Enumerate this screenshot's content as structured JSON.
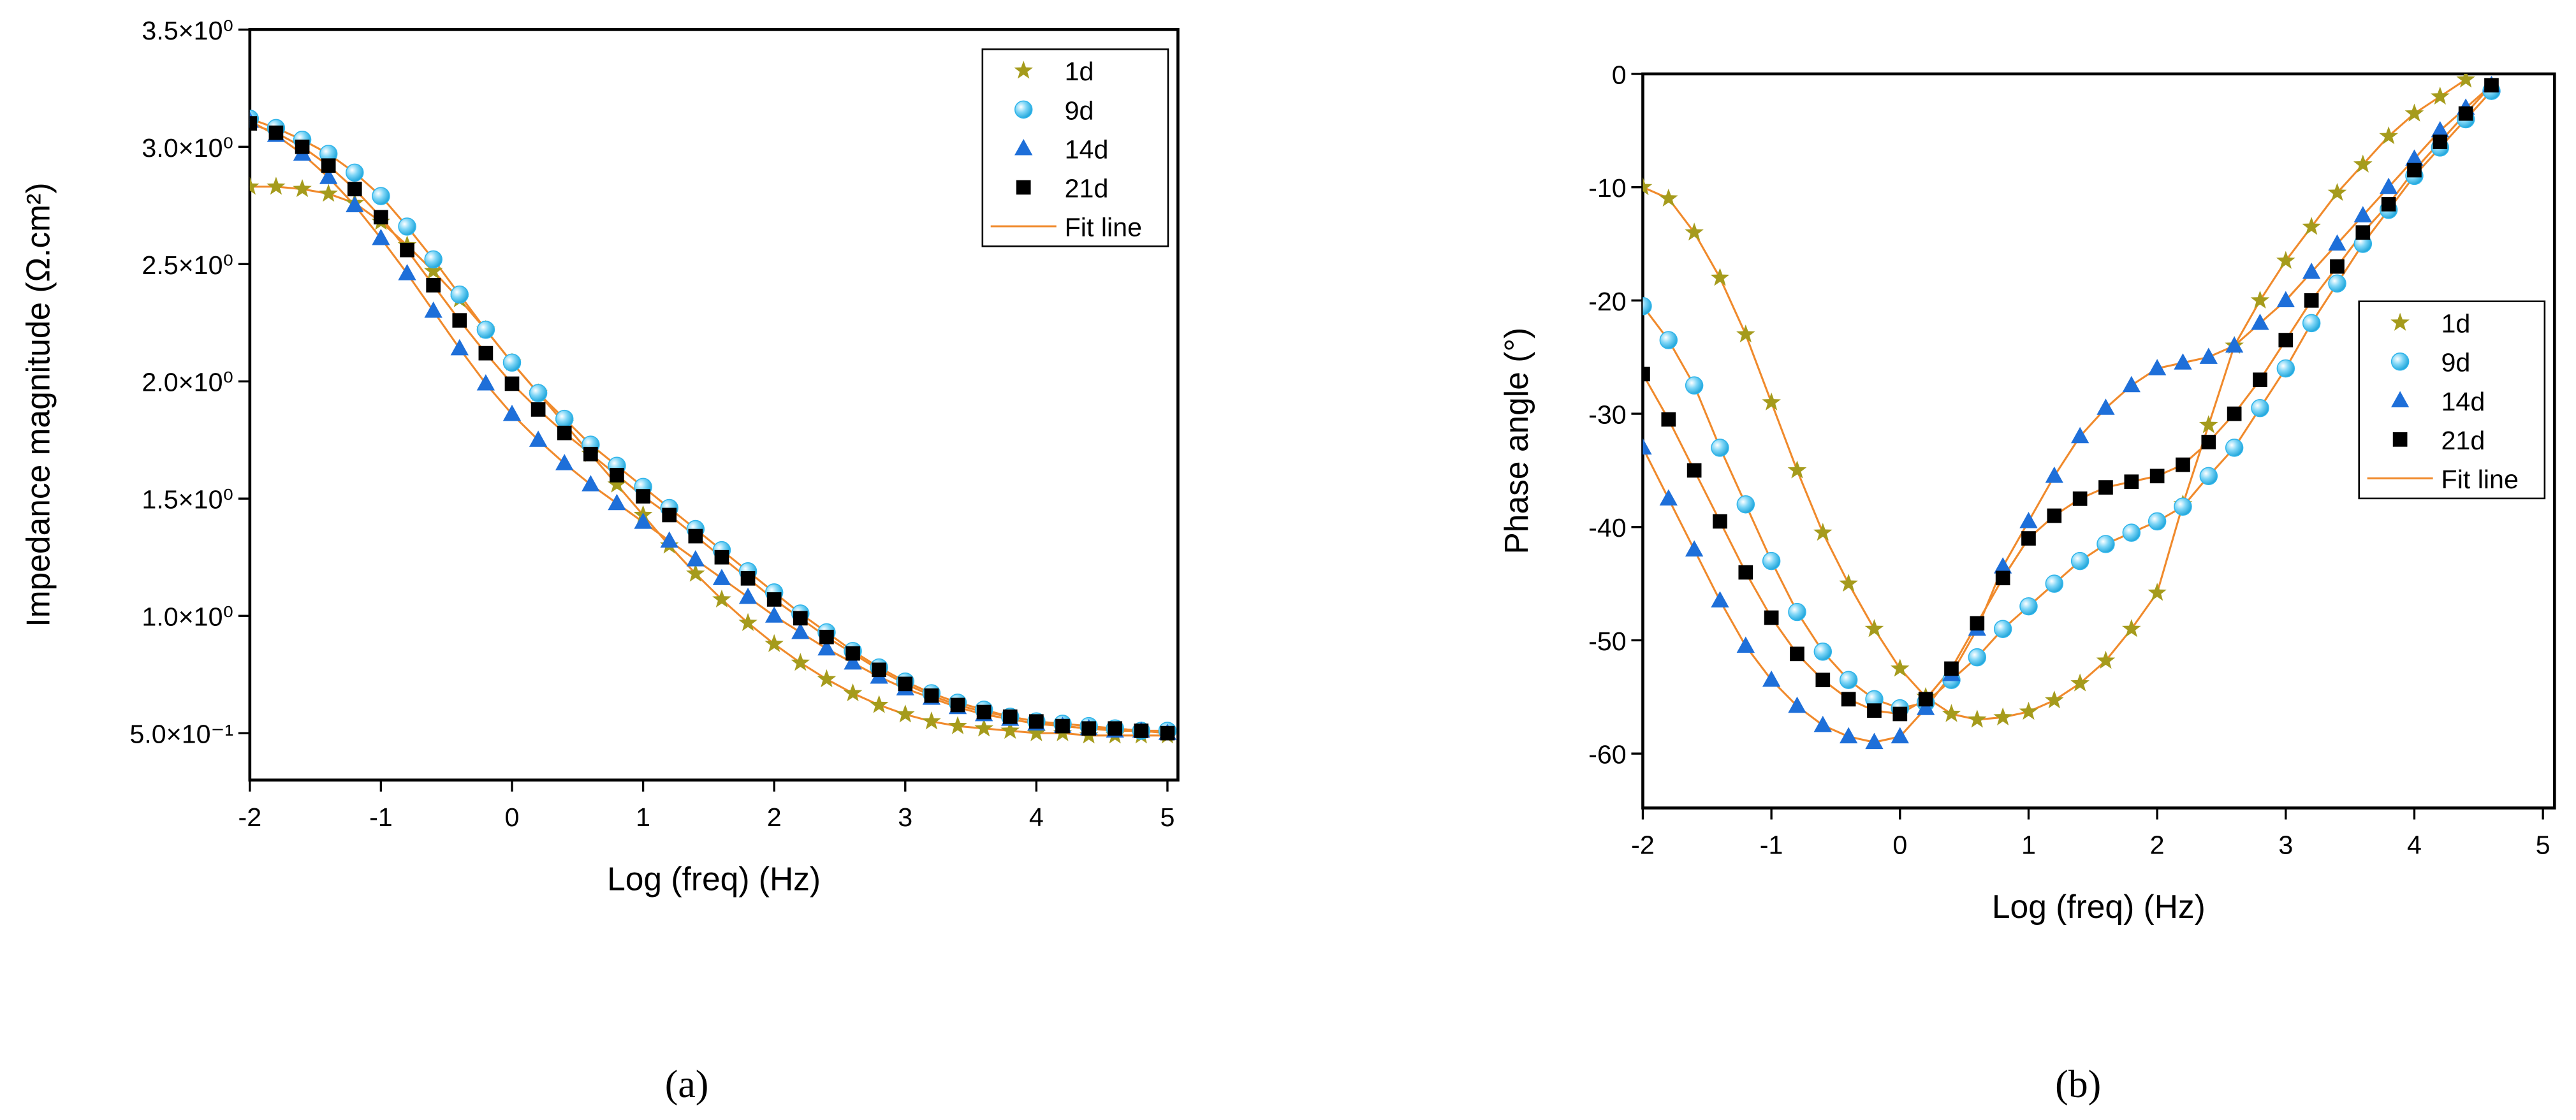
{
  "chart_data": [
    {
      "type": "scatter",
      "xlabel": "Log (freq) (Hz)",
      "ylabel": "Impedance magnitude (Ω.cm²)",
      "xlim": [
        -2,
        5.08
      ],
      "ylim": [
        0.3,
        3.5
      ],
      "xticks": [
        -2,
        -1,
        0,
        1,
        2,
        3,
        4,
        5
      ],
      "yticks": [
        {
          "value": 0.5,
          "label": "5.0×10⁻¹"
        },
        {
          "value": 1.0,
          "label": "1.0×10⁰"
        },
        {
          "value": 1.5,
          "label": "1.5×10⁰"
        },
        {
          "value": 2.0,
          "label": "2.0×10⁰"
        },
        {
          "value": 2.5,
          "label": "2.5×10⁰"
        },
        {
          "value": 3.0,
          "label": "3.0×10⁰"
        },
        {
          "value": 3.5,
          "label": "3.5×10⁰"
        }
      ],
      "legend": "upper right",
      "fit_line": {
        "name": "Fit line",
        "color": "#f08a2c"
      },
      "x": [
        -2,
        -1.8,
        -1.6,
        -1.4,
        -1.2,
        -1.0,
        -0.8,
        -0.6,
        -0.4,
        -0.2,
        0,
        0.2,
        0.4,
        0.6,
        0.8,
        1.0,
        1.2,
        1.4,
        1.6,
        1.8,
        2.0,
        2.2,
        2.4,
        2.6,
        2.8,
        3.0,
        3.2,
        3.4,
        3.6,
        3.8,
        4.0,
        4.2,
        4.4,
        4.6,
        4.8,
        5.0
      ],
      "series": [
        {
          "name": "1d",
          "color": "#a59b1c",
          "marker": "star",
          "values": [
            2.83,
            2.83,
            2.82,
            2.8,
            2.76,
            2.68,
            2.58,
            2.47,
            2.35,
            2.22,
            2.08,
            1.95,
            1.82,
            1.69,
            1.56,
            1.43,
            1.3,
            1.18,
            1.07,
            0.97,
            0.88,
            0.8,
            0.73,
            0.67,
            0.62,
            0.58,
            0.55,
            0.53,
            0.52,
            0.51,
            0.5,
            0.5,
            0.49,
            0.49,
            0.49,
            0.49
          ]
        },
        {
          "name": "9d",
          "color": "#2fb4ea",
          "marker": "sphere",
          "values": [
            3.12,
            3.08,
            3.03,
            2.97,
            2.89,
            2.79,
            2.66,
            2.52,
            2.37,
            2.22,
            2.08,
            1.95,
            1.84,
            1.73,
            1.64,
            1.55,
            1.46,
            1.37,
            1.28,
            1.19,
            1.1,
            1.01,
            0.93,
            0.85,
            0.78,
            0.72,
            0.67,
            0.63,
            0.6,
            0.57,
            0.55,
            0.54,
            0.53,
            0.52,
            0.51,
            0.51
          ]
        },
        {
          "name": "14d",
          "color": "#1e6fd9",
          "marker": "triangle",
          "values": [
            3.11,
            3.05,
            2.97,
            2.87,
            2.75,
            2.61,
            2.46,
            2.3,
            2.14,
            1.99,
            1.86,
            1.75,
            1.65,
            1.56,
            1.48,
            1.4,
            1.32,
            1.24,
            1.16,
            1.08,
            1.0,
            0.93,
            0.86,
            0.8,
            0.74,
            0.69,
            0.65,
            0.61,
            0.58,
            0.56,
            0.54,
            0.53,
            0.52,
            0.51,
            0.51,
            0.5
          ]
        },
        {
          "name": "21d",
          "color": "#000000",
          "marker": "square",
          "values": [
            3.1,
            3.06,
            3.0,
            2.92,
            2.82,
            2.7,
            2.56,
            2.41,
            2.26,
            2.12,
            1.99,
            1.88,
            1.78,
            1.69,
            1.6,
            1.51,
            1.43,
            1.34,
            1.25,
            1.16,
            1.07,
            0.99,
            0.91,
            0.84,
            0.77,
            0.71,
            0.66,
            0.62,
            0.59,
            0.57,
            0.55,
            0.53,
            0.52,
            0.52,
            0.51,
            0.5
          ]
        }
      ]
    },
    {
      "type": "scatter",
      "xlabel": "Log (freq) (Hz)",
      "ylabel": "Phase angle (°)",
      "xlim": [
        -2,
        5.09
      ],
      "ylim": [
        -64.8,
        0
      ],
      "xticks": [
        -2,
        -1,
        0,
        1,
        2,
        3,
        4,
        5
      ],
      "yticks": [
        0,
        -10,
        -20,
        -30,
        -40,
        -50,
        -60
      ],
      "legend": "right",
      "fit_line": {
        "name": "Fit line",
        "color": "#f08a2c"
      },
      "x": [
        -2,
        -1.8,
        -1.6,
        -1.4,
        -1.2,
        -1.0,
        -0.8,
        -0.6,
        -0.4,
        -0.2,
        0,
        0.2,
        0.4,
        0.6,
        0.8,
        1.0,
        1.2,
        1.4,
        1.6,
        1.8,
        2.0,
        2.2,
        2.4,
        2.6,
        2.8,
        3.0,
        3.2,
        3.4,
        3.6,
        3.8,
        4.0,
        4.2,
        4.4,
        4.6
      ],
      "series": [
        {
          "name": "1d",
          "color": "#a59b1c",
          "marker": "star",
          "values": [
            -10,
            -11,
            -14,
            -18,
            -23,
            -29,
            -35,
            -40.5,
            -45,
            -49,
            -52.5,
            -55,
            -56.5,
            -57,
            -56.8,
            -56.3,
            -55.3,
            -53.8,
            -51.8,
            -49,
            -45.8,
            -38,
            -31,
            -24,
            -20,
            -16.5,
            -13.5,
            -10.5,
            -8,
            -5.5,
            -3.5,
            -2,
            -0.5,
            null
          ]
        },
        {
          "name": "9d",
          "color": "#2fb4ea",
          "marker": "sphere",
          "values": [
            -20.5,
            -23.5,
            -27.5,
            -33,
            -38,
            -43,
            -47.5,
            -51,
            -53.5,
            -55.2,
            -56,
            -55.5,
            -53.5,
            -51.5,
            -49,
            -47,
            -45,
            -43,
            -41.5,
            -40.5,
            -39.5,
            -38.2,
            -35.5,
            -33,
            -29.5,
            -26,
            -22,
            -18.5,
            -15,
            -12,
            -9,
            -6.5,
            -4,
            -1.5
          ]
        },
        {
          "name": "14d",
          "color": "#1e6fd9",
          "marker": "triangle",
          "values": [
            -33,
            -37.5,
            -42,
            -46.5,
            -50.5,
            -53.5,
            -55.8,
            -57.5,
            -58.5,
            -59,
            -58.5,
            -56,
            -53,
            -49,
            -43.5,
            -39.5,
            -35.5,
            -32,
            -29.5,
            -27.5,
            -26,
            -25.5,
            -25,
            -24,
            -22,
            -20,
            -17.5,
            -15,
            -12.5,
            -10,
            -7.5,
            -5,
            -3,
            -1
          ]
        },
        {
          "name": "21d",
          "color": "#000000",
          "marker": "square",
          "values": [
            -26.5,
            -30.5,
            -35,
            -39.5,
            -44,
            -48,
            -51.2,
            -53.5,
            -55.2,
            -56.2,
            -56.5,
            -55.2,
            -52.5,
            -48.5,
            -44.5,
            -41,
            -39,
            -37.5,
            -36.5,
            -36,
            -35.5,
            -34.5,
            -32.5,
            -30,
            -27,
            -23.5,
            -20,
            -17,
            -14,
            -11.5,
            -8.5,
            -6,
            -3.5,
            -1
          ]
        }
      ]
    }
  ],
  "captions": [
    "(a)",
    "(b)"
  ]
}
